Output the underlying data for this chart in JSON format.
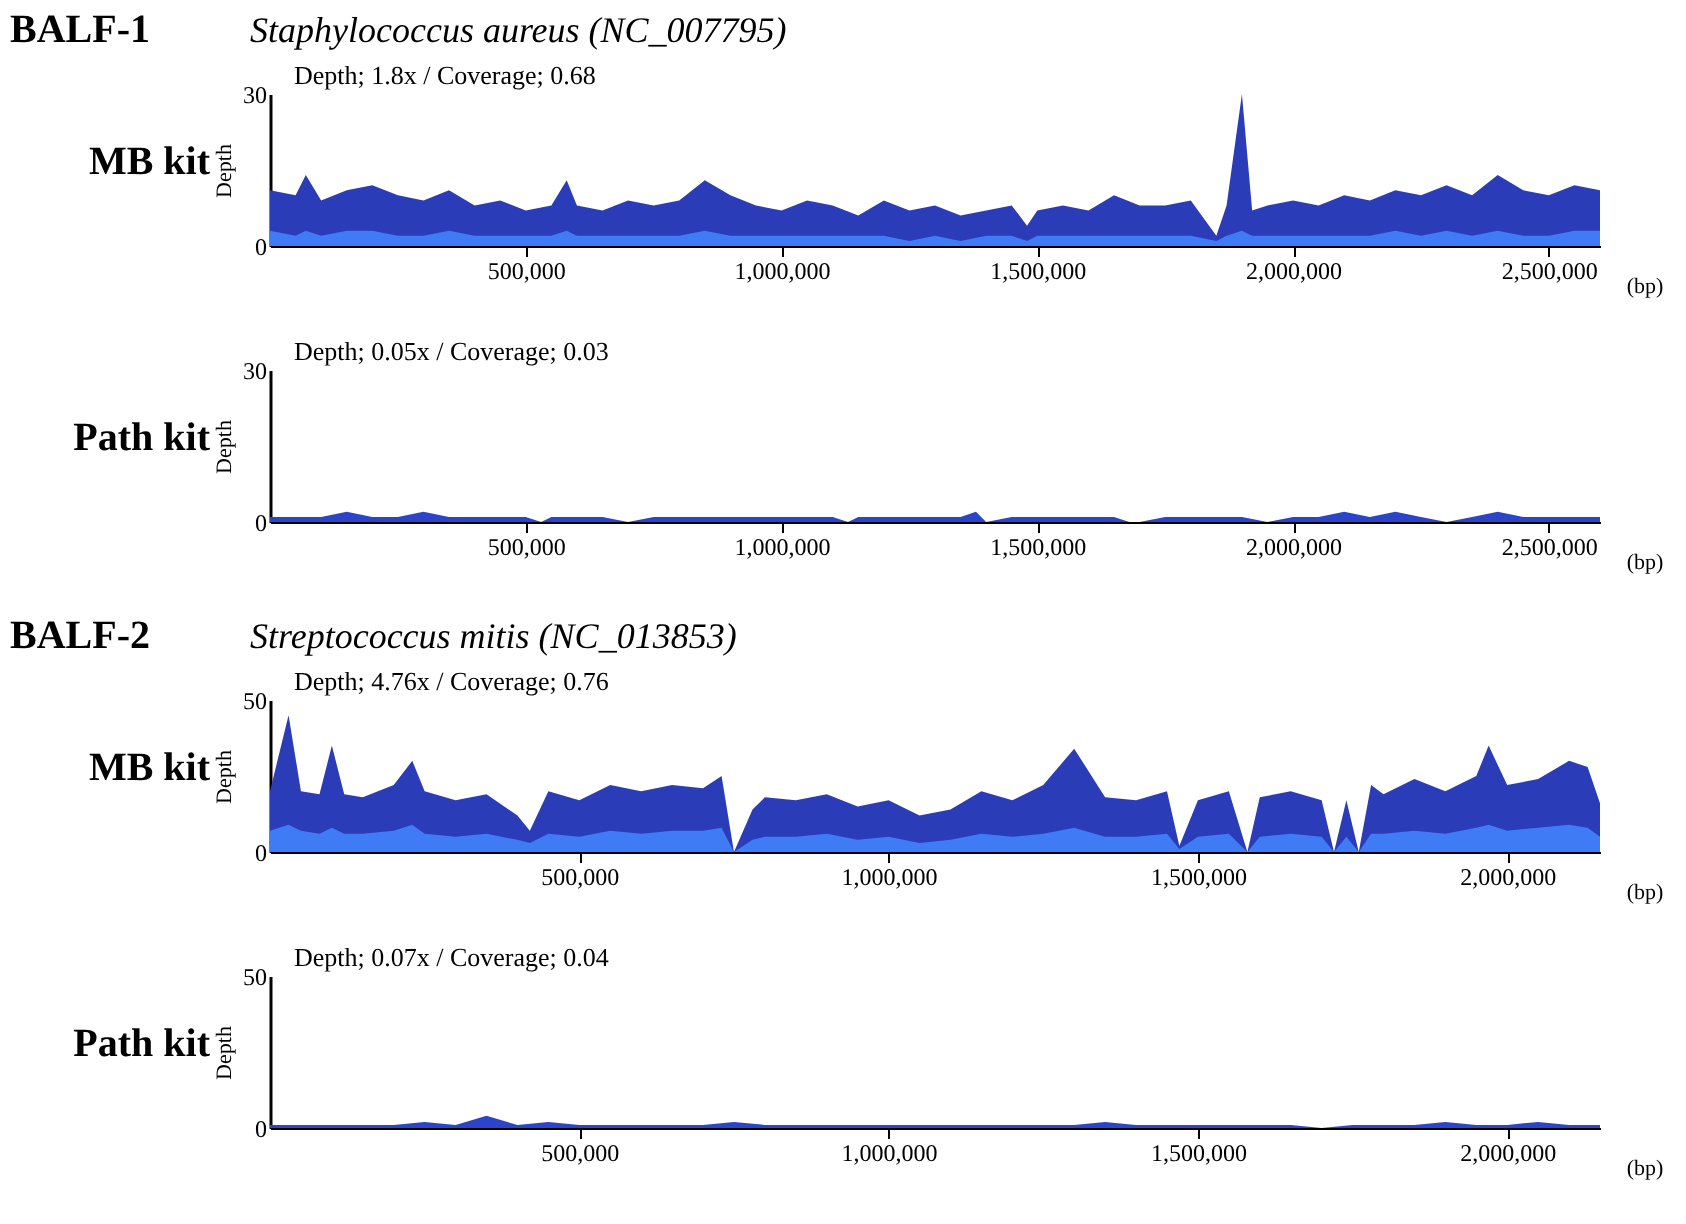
{
  "chart_data": [
    {
      "type": "area",
      "title": "BALF-1",
      "subtitle": "Staphylococcus aureus (NC_007795)",
      "ylabel": "Depth",
      "xlabel": "(bp)",
      "annotations": [
        "MB kit",
        "Depth; 1.8x / Coverage; 0.68"
      ],
      "xlim": [
        0,
        2600000
      ],
      "xticks": [
        {
          "value": 500000,
          "label": "500,000"
        },
        {
          "value": 1000000,
          "label": "1,000,000"
        },
        {
          "value": 1500000,
          "label": "1,500,000"
        },
        {
          "value": 2000000,
          "label": "2,000,000"
        },
        {
          "value": 2500000,
          "label": "2,500,000"
        }
      ],
      "ylim": [
        0,
        30
      ],
      "yticks": [
        0,
        30
      ],
      "x": [
        0,
        50000,
        70000,
        100000,
        150000,
        200000,
        250000,
        300000,
        350000,
        400000,
        450000,
        500000,
        550000,
        580000,
        600000,
        650000,
        700000,
        750000,
        800000,
        850000,
        900000,
        950000,
        1000000,
        1050000,
        1100000,
        1150000,
        1200000,
        1250000,
        1300000,
        1350000,
        1400000,
        1450000,
        1480000,
        1500000,
        1550000,
        1600000,
        1650000,
        1700000,
        1750000,
        1800000,
        1850000,
        1870000,
        1900000,
        1920000,
        1950000,
        2000000,
        2050000,
        2100000,
        2150000,
        2200000,
        2250000,
        2300000,
        2350000,
        2400000,
        2450000,
        2500000,
        2550000,
        2600000
      ],
      "series": [
        {
          "color": "#2b3cb8",
          "values": [
            11,
            10,
            14,
            9,
            11,
            12,
            10,
            9,
            11,
            8,
            9,
            7,
            8,
            13,
            8,
            7,
            9,
            8,
            9,
            13,
            10,
            8,
            7,
            9,
            8,
            6,
            9,
            7,
            8,
            6,
            7,
            8,
            4,
            7,
            8,
            7,
            10,
            8,
            8,
            9,
            2,
            8,
            30,
            7,
            8,
            9,
            8,
            10,
            9,
            11,
            10,
            12,
            10,
            14,
            11,
            10,
            12,
            11
          ]
        },
        {
          "color": "#3e7bf5",
          "values": [
            3,
            2,
            3,
            2,
            3,
            3,
            2,
            2,
            3,
            2,
            2,
            2,
            2,
            3,
            2,
            2,
            2,
            2,
            2,
            3,
            2,
            2,
            2,
            2,
            2,
            2,
            2,
            1,
            2,
            1,
            2,
            2,
            1,
            2,
            2,
            2,
            2,
            2,
            2,
            2,
            1,
            2,
            3,
            2,
            2,
            2,
            2,
            2,
            2,
            3,
            2,
            3,
            2,
            3,
            2,
            2,
            3,
            3
          ]
        }
      ]
    },
    {
      "type": "area",
      "ylabel": "Depth",
      "xlabel": "(bp)",
      "annotations": [
        "Path kit",
        "Depth; 0.05x / Coverage; 0.03"
      ],
      "xlim": [
        0,
        2600000
      ],
      "xticks": [
        {
          "value": 500000,
          "label": "500,000"
        },
        {
          "value": 1000000,
          "label": "1,000,000"
        },
        {
          "value": 1500000,
          "label": "1,500,000"
        },
        {
          "value": 2000000,
          "label": "2,000,000"
        },
        {
          "value": 2500000,
          "label": "2,500,000"
        }
      ],
      "ylim": [
        0,
        30
      ],
      "yticks": [
        0,
        30
      ],
      "x": [
        0,
        50000,
        100000,
        150000,
        200000,
        250000,
        300000,
        350000,
        400000,
        450000,
        500000,
        530000,
        550000,
        600000,
        650000,
        700000,
        750000,
        800000,
        850000,
        900000,
        950000,
        1000000,
        1050000,
        1100000,
        1130000,
        1150000,
        1200000,
        1250000,
        1300000,
        1350000,
        1380000,
        1400000,
        1450000,
        1500000,
        1550000,
        1600000,
        1650000,
        1680000,
        1700000,
        1750000,
        1800000,
        1850000,
        1900000,
        1950000,
        2000000,
        2050000,
        2100000,
        2150000,
        2200000,
        2250000,
        2300000,
        2350000,
        2400000,
        2450000,
        2500000,
        2550000,
        2600000
      ],
      "series": [
        {
          "color": "#2b45c8",
          "values": [
            1,
            1,
            1,
            2,
            1,
            1,
            2,
            1,
            1,
            1,
            1,
            0,
            1,
            1,
            1,
            0,
            1,
            1,
            1,
            1,
            1,
            1,
            1,
            1,
            0,
            1,
            1,
            1,
            1,
            1,
            2,
            0,
            1,
            1,
            1,
            1,
            1,
            0,
            0,
            1,
            1,
            1,
            1,
            0,
            1,
            1,
            2,
            1,
            2,
            1,
            0,
            1,
            2,
            1,
            1,
            1,
            1
          ]
        }
      ]
    },
    {
      "type": "area",
      "title": "BALF-2",
      "subtitle": "Streptococcus mitis (NC_013853)",
      "ylabel": "Depth",
      "xlabel": "(bp)",
      "annotations": [
        "MB kit",
        "Depth; 4.76x / Coverage; 0.76"
      ],
      "xlim": [
        0,
        2150000
      ],
      "xticks": [
        {
          "value": 500000,
          "label": "500,000"
        },
        {
          "value": 1000000,
          "label": "1,000,000"
        },
        {
          "value": 1500000,
          "label": "1,500,000"
        },
        {
          "value": 2000000,
          "label": "2,000,000"
        }
      ],
      "ylim": [
        0,
        50
      ],
      "yticks": [
        0,
        50
      ],
      "x": [
        0,
        30000,
        50000,
        80000,
        100000,
        120000,
        150000,
        200000,
        230000,
        250000,
        300000,
        350000,
        400000,
        420000,
        450000,
        500000,
        550000,
        600000,
        650000,
        700000,
        730000,
        750000,
        780000,
        800000,
        850000,
        900000,
        950000,
        1000000,
        1050000,
        1100000,
        1150000,
        1200000,
        1250000,
        1300000,
        1350000,
        1400000,
        1450000,
        1470000,
        1500000,
        1550000,
        1580000,
        1600000,
        1650000,
        1700000,
        1720000,
        1740000,
        1760000,
        1780000,
        1800000,
        1850000,
        1900000,
        1950000,
        1970000,
        2000000,
        2050000,
        2100000,
        2130000,
        2150000
      ],
      "series": [
        {
          "color": "#2b3cb8",
          "values": [
            20,
            45,
            20,
            19,
            35,
            19,
            18,
            22,
            30,
            20,
            17,
            19,
            12,
            7,
            20,
            17,
            22,
            20,
            22,
            21,
            25,
            0,
            14,
            18,
            17,
            19,
            15,
            17,
            12,
            14,
            20,
            17,
            22,
            34,
            18,
            17,
            20,
            2,
            17,
            20,
            0,
            18,
            20,
            17,
            0,
            17,
            0,
            22,
            19,
            24,
            20,
            25,
            35,
            22,
            24,
            30,
            28,
            16
          ]
        },
        {
          "color": "#3e7bf5",
          "values": [
            7,
            9,
            7,
            6,
            8,
            6,
            6,
            7,
            9,
            6,
            5,
            6,
            4,
            3,
            6,
            5,
            7,
            6,
            7,
            7,
            8,
            0,
            4,
            5,
            5,
            6,
            4,
            5,
            3,
            4,
            6,
            5,
            6,
            8,
            5,
            5,
            6,
            1,
            5,
            6,
            0,
            5,
            6,
            5,
            0,
            5,
            0,
            6,
            6,
            7,
            6,
            8,
            9,
            7,
            8,
            9,
            8,
            5
          ]
        }
      ]
    },
    {
      "type": "area",
      "ylabel": "Depth",
      "xlabel": "(bp)",
      "annotations": [
        "Path kit",
        "Depth; 0.07x / Coverage; 0.04"
      ],
      "xlim": [
        0,
        2150000
      ],
      "xticks": [
        {
          "value": 500000,
          "label": "500,000"
        },
        {
          "value": 1000000,
          "label": "1,000,000"
        },
        {
          "value": 1500000,
          "label": "1,500,000"
        },
        {
          "value": 2000000,
          "label": "2,000,000"
        }
      ],
      "ylim": [
        0,
        50
      ],
      "yticks": [
        0,
        50
      ],
      "x": [
        0,
        50000,
        100000,
        150000,
        200000,
        250000,
        300000,
        350000,
        400000,
        450000,
        500000,
        550000,
        600000,
        650000,
        700000,
        750000,
        800000,
        850000,
        900000,
        950000,
        1000000,
        1050000,
        1100000,
        1150000,
        1200000,
        1250000,
        1300000,
        1350000,
        1400000,
        1450000,
        1500000,
        1550000,
        1600000,
        1650000,
        1700000,
        1750000,
        1800000,
        1850000,
        1900000,
        1950000,
        2000000,
        2050000,
        2100000,
        2150000
      ],
      "series": [
        {
          "color": "#2b45c8",
          "values": [
            1,
            1,
            1,
            1,
            1,
            2,
            1,
            4,
            1,
            2,
            1,
            1,
            1,
            1,
            1,
            2,
            1,
            1,
            1,
            1,
            1,
            1,
            1,
            1,
            1,
            1,
            1,
            2,
            1,
            1,
            1,
            1,
            1,
            1,
            0,
            1,
            1,
            1,
            2,
            1,
            1,
            2,
            1,
            1
          ]
        }
      ]
    }
  ]
}
